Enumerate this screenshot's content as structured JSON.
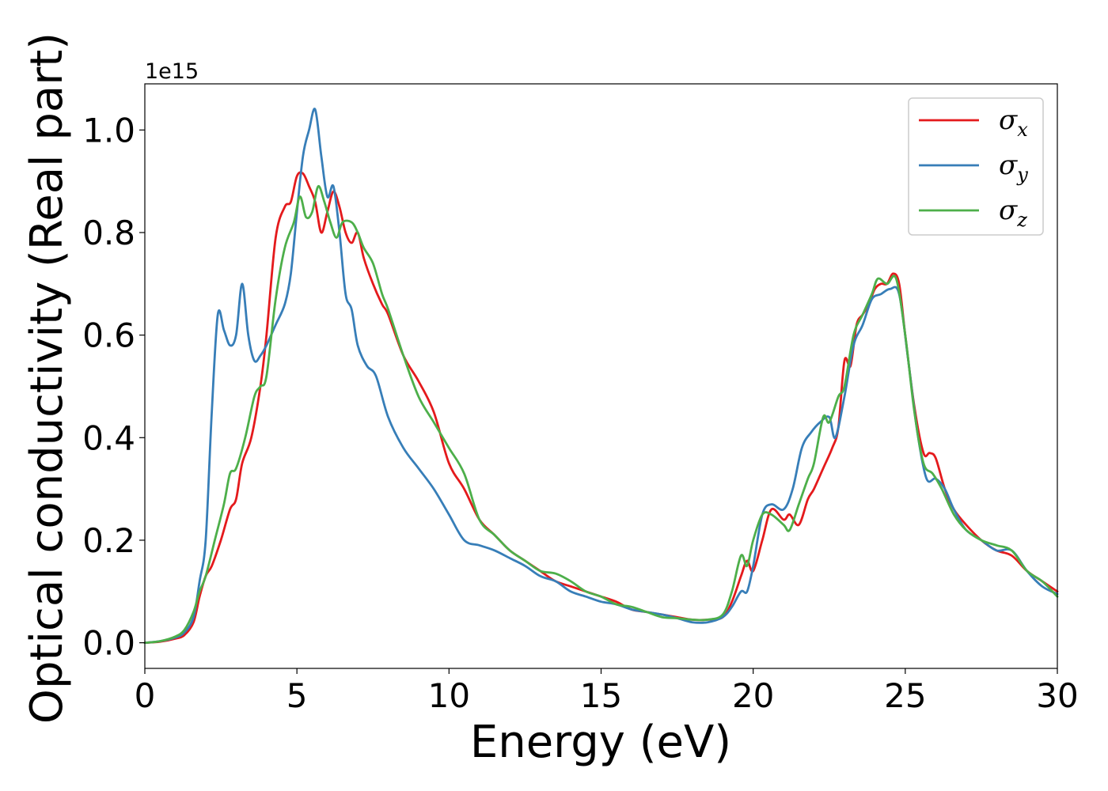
{
  "chart_data": {
    "type": "line",
    "xlabel": "Energy (eV)",
    "ylabel": "Optical conductivity (Real part)",
    "y_offset_text": "1e15",
    "xlim": [
      0,
      30
    ],
    "ylim": [
      -0.05,
      1.09
    ],
    "x_ticks": [
      0,
      5,
      10,
      15,
      20,
      25,
      30
    ],
    "x_tick_labels": [
      "0",
      "5",
      "10",
      "15",
      "20",
      "25",
      "30"
    ],
    "y_ticks": [
      0.0,
      0.2,
      0.4,
      0.6,
      0.8,
      1.0
    ],
    "y_tick_labels": [
      "0.0",
      "0.2",
      "0.4",
      "0.6",
      "0.8",
      "1.0"
    ],
    "grid": false,
    "legend_position": "top-right",
    "series": [
      {
        "name": "σx",
        "legend_symbol": "σ",
        "legend_subscript": "x",
        "color": "#e41a1c",
        "x": [
          0,
          0.5,
          1.0,
          1.3,
          1.6,
          1.8,
          2.0,
          2.2,
          2.5,
          2.8,
          3.0,
          3.2,
          3.5,
          3.8,
          4.0,
          4.3,
          4.6,
          4.8,
          5.0,
          5.2,
          5.4,
          5.6,
          5.8,
          6.0,
          6.2,
          6.4,
          6.6,
          6.8,
          7.0,
          7.2,
          7.5,
          7.8,
          8.0,
          8.5,
          9.0,
          9.5,
          10.0,
          10.5,
          11.0,
          11.5,
          12.0,
          12.5,
          13.0,
          13.5,
          14.0,
          14.5,
          15.0,
          15.5,
          16.0,
          16.5,
          17.0,
          17.5,
          18.0,
          18.5,
          19.0,
          19.3,
          19.6,
          19.8,
          20.0,
          20.3,
          20.6,
          21.0,
          21.2,
          21.5,
          21.8,
          22.0,
          22.3,
          22.6,
          22.8,
          23.0,
          23.2,
          23.4,
          23.6,
          23.8,
          24.0,
          24.2,
          24.4,
          24.6,
          24.8,
          25.0,
          25.3,
          25.6,
          25.8,
          26.0,
          26.3,
          26.6,
          27.0,
          27.5,
          28.0,
          28.5,
          29.0,
          29.5,
          30.0
        ],
        "y": [
          0.0,
          0.002,
          0.008,
          0.015,
          0.04,
          0.09,
          0.13,
          0.15,
          0.2,
          0.26,
          0.28,
          0.35,
          0.4,
          0.5,
          0.6,
          0.79,
          0.85,
          0.86,
          0.91,
          0.915,
          0.89,
          0.86,
          0.8,
          0.84,
          0.88,
          0.85,
          0.8,
          0.78,
          0.8,
          0.75,
          0.7,
          0.66,
          0.64,
          0.56,
          0.51,
          0.45,
          0.35,
          0.3,
          0.24,
          0.21,
          0.18,
          0.16,
          0.14,
          0.12,
          0.11,
          0.1,
          0.09,
          0.08,
          0.065,
          0.06,
          0.055,
          0.05,
          0.045,
          0.045,
          0.05,
          0.08,
          0.13,
          0.16,
          0.14,
          0.2,
          0.26,
          0.24,
          0.25,
          0.23,
          0.28,
          0.3,
          0.34,
          0.38,
          0.42,
          0.55,
          0.54,
          0.62,
          0.64,
          0.66,
          0.69,
          0.7,
          0.7,
          0.72,
          0.7,
          0.6,
          0.46,
          0.37,
          0.37,
          0.36,
          0.3,
          0.26,
          0.23,
          0.2,
          0.18,
          0.17,
          0.14,
          0.12,
          0.1
        ]
      },
      {
        "name": "σy",
        "legend_symbol": "σ",
        "legend_subscript": "y",
        "color": "#377eb8",
        "x": [
          0,
          0.5,
          1.0,
          1.3,
          1.6,
          1.8,
          2.0,
          2.2,
          2.4,
          2.6,
          2.8,
          3.0,
          3.2,
          3.4,
          3.6,
          3.8,
          4.0,
          4.3,
          4.6,
          4.8,
          5.0,
          5.2,
          5.4,
          5.6,
          5.8,
          6.0,
          6.2,
          6.4,
          6.6,
          6.8,
          7.0,
          7.3,
          7.6,
          8.0,
          8.5,
          9.0,
          9.5,
          10.0,
          10.5,
          11.0,
          11.5,
          12.0,
          12.5,
          13.0,
          13.5,
          14.0,
          14.5,
          15.0,
          15.5,
          16.0,
          16.5,
          17.0,
          17.5,
          18.0,
          18.5,
          19.0,
          19.3,
          19.6,
          19.8,
          20.0,
          20.3,
          20.6,
          21.0,
          21.3,
          21.6,
          21.9,
          22.2,
          22.5,
          22.7,
          23.0,
          23.3,
          23.6,
          23.9,
          24.2,
          24.5,
          24.8,
          25.1,
          25.4,
          25.7,
          26.0,
          26.3,
          26.6,
          27.0,
          27.5,
          28.0,
          28.5,
          29.0,
          29.5,
          30.0
        ],
        "y": [
          0.0,
          0.003,
          0.01,
          0.02,
          0.05,
          0.12,
          0.2,
          0.45,
          0.64,
          0.61,
          0.58,
          0.6,
          0.7,
          0.6,
          0.55,
          0.56,
          0.58,
          0.62,
          0.66,
          0.72,
          0.84,
          0.95,
          1.0,
          1.04,
          0.95,
          0.87,
          0.89,
          0.8,
          0.68,
          0.65,
          0.58,
          0.54,
          0.52,
          0.44,
          0.38,
          0.34,
          0.3,
          0.25,
          0.2,
          0.19,
          0.18,
          0.165,
          0.15,
          0.13,
          0.12,
          0.1,
          0.09,
          0.08,
          0.075,
          0.065,
          0.06,
          0.055,
          0.048,
          0.04,
          0.04,
          0.05,
          0.07,
          0.1,
          0.1,
          0.15,
          0.25,
          0.27,
          0.26,
          0.3,
          0.38,
          0.41,
          0.43,
          0.44,
          0.4,
          0.48,
          0.58,
          0.62,
          0.67,
          0.68,
          0.69,
          0.68,
          0.55,
          0.41,
          0.32,
          0.32,
          0.3,
          0.26,
          0.22,
          0.2,
          0.18,
          0.18,
          0.14,
          0.11,
          0.095
        ]
      },
      {
        "name": "σz",
        "legend_symbol": "σ",
        "legend_subscript": "z",
        "color": "#4daf4a",
        "x": [
          0,
          0.5,
          1.0,
          1.3,
          1.6,
          1.8,
          2.0,
          2.3,
          2.6,
          2.8,
          3.0,
          3.3,
          3.6,
          3.8,
          4.0,
          4.3,
          4.6,
          4.9,
          5.1,
          5.3,
          5.5,
          5.7,
          5.9,
          6.1,
          6.3,
          6.5,
          6.8,
          7.0,
          7.2,
          7.5,
          7.8,
          8.0,
          8.5,
          9.0,
          9.5,
          10.0,
          10.5,
          11.0,
          11.5,
          12.0,
          12.5,
          13.0,
          13.5,
          14.0,
          14.5,
          15.0,
          15.5,
          16.0,
          16.5,
          17.0,
          17.5,
          18.0,
          18.5,
          19.0,
          19.3,
          19.6,
          19.8,
          20.0,
          20.3,
          20.6,
          21.0,
          21.2,
          21.5,
          21.8,
          22.0,
          22.3,
          22.5,
          22.8,
          23.0,
          23.3,
          23.6,
          23.9,
          24.1,
          24.4,
          24.7,
          25.0,
          25.3,
          25.6,
          25.9,
          26.2,
          26.6,
          27.0,
          27.5,
          28.0,
          28.5,
          29.0,
          29.5,
          30.0
        ],
        "y": [
          0.0,
          0.003,
          0.012,
          0.025,
          0.06,
          0.1,
          0.13,
          0.2,
          0.27,
          0.33,
          0.34,
          0.4,
          0.48,
          0.5,
          0.52,
          0.67,
          0.77,
          0.82,
          0.87,
          0.83,
          0.84,
          0.89,
          0.86,
          0.82,
          0.79,
          0.82,
          0.82,
          0.8,
          0.77,
          0.74,
          0.68,
          0.65,
          0.56,
          0.48,
          0.43,
          0.38,
          0.33,
          0.24,
          0.21,
          0.18,
          0.16,
          0.14,
          0.135,
          0.12,
          0.1,
          0.09,
          0.075,
          0.07,
          0.06,
          0.05,
          0.048,
          0.045,
          0.045,
          0.055,
          0.1,
          0.17,
          0.15,
          0.2,
          0.25,
          0.25,
          0.23,
          0.22,
          0.27,
          0.32,
          0.35,
          0.44,
          0.43,
          0.48,
          0.5,
          0.6,
          0.64,
          0.68,
          0.71,
          0.7,
          0.71,
          0.6,
          0.45,
          0.35,
          0.33,
          0.3,
          0.25,
          0.22,
          0.2,
          0.19,
          0.18,
          0.14,
          0.12,
          0.09
        ]
      }
    ]
  }
}
